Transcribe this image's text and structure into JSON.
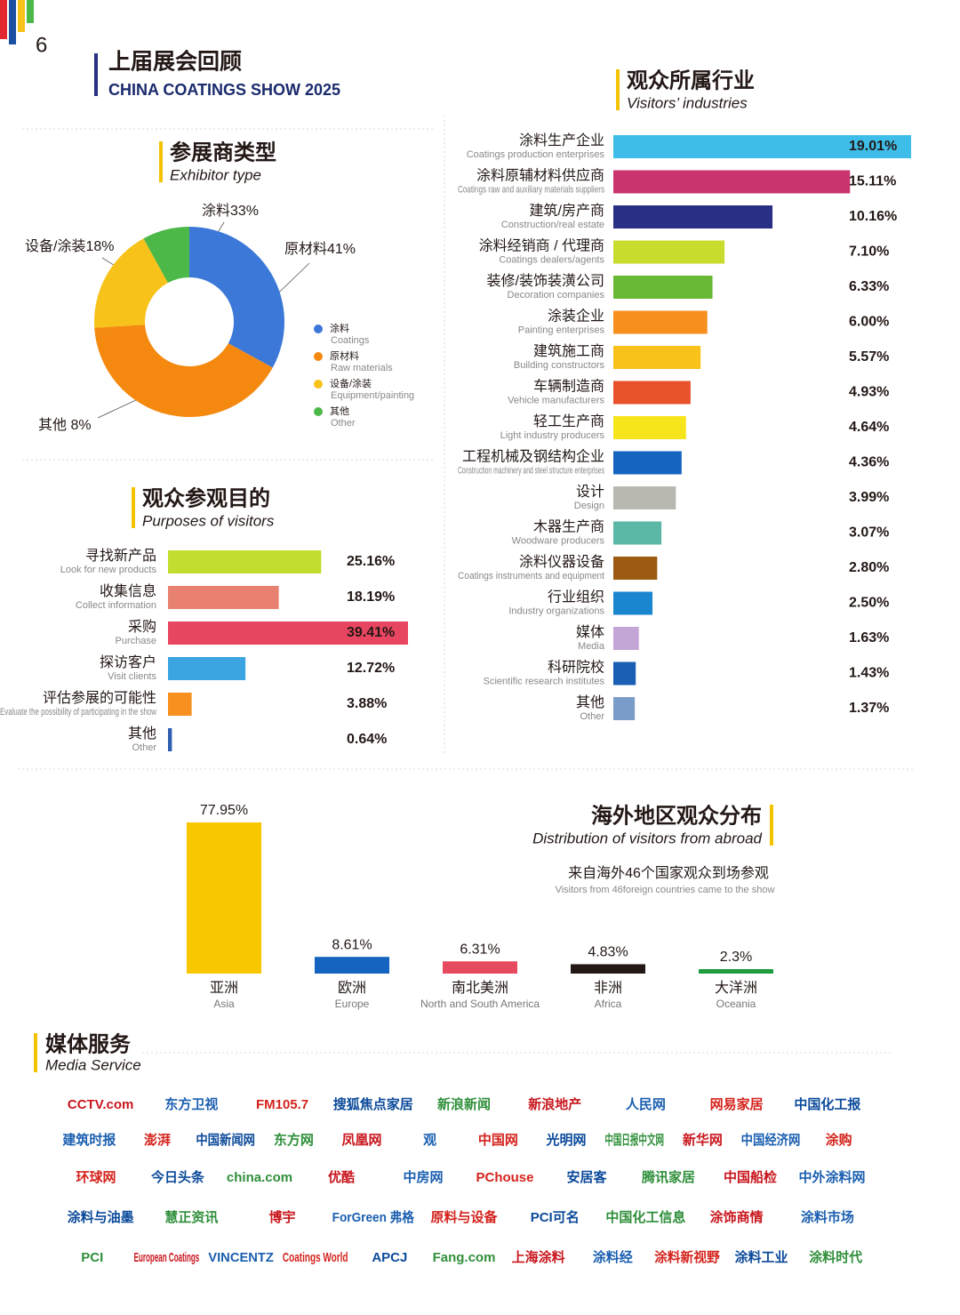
{
  "page_number": "6",
  "header": {
    "title": "上届展会回顾",
    "subtitle": "CHINA COATINGS SHOW 2025"
  },
  "chart_data": [
    {
      "type": "pie",
      "donut": true,
      "title": "参展商类型",
      "subtitle": "Exhibitor type",
      "categories": [
        "涂料",
        "原材料",
        "设备/涂装",
        "其他"
      ],
      "categories_en": [
        "Coatings",
        "Raw materials",
        "Equipment/painting",
        "Other"
      ],
      "values": [
        33,
        41,
        18,
        8
      ],
      "value_labels": [
        "涂料33%",
        "原材料41%",
        "设备/涂装18%",
        "其他 8%"
      ],
      "colors": [
        "#3b78d8",
        "#f5890f",
        "#f7c21a",
        "#4cb848"
      ]
    },
    {
      "type": "hbar",
      "title": "观众参观目的",
      "subtitle": "Purposes of visitors",
      "categories": [
        "寻找新产品",
        "收集信息",
        "采购",
        "探访客户",
        "评估参展的可能性",
        "其他"
      ],
      "categories_en": [
        "Look for new products",
        "Collect information",
        "Purchase",
        "Visit clients",
        "Evaluate the possibility of participating in the show",
        "Other"
      ],
      "values": [
        25.16,
        18.19,
        39.41,
        12.72,
        3.88,
        0.64
      ],
      "value_labels": [
        "25.16%",
        "18.19%",
        "39.41%",
        "12.72%",
        "3.88%",
        "0.64%"
      ],
      "colors": [
        "#c4dc2e",
        "#e8816f",
        "#e84660",
        "#3aa5e0",
        "#f7901e",
        "#2f5eb0"
      ]
    },
    {
      "type": "hbar",
      "title": "观众所属行业",
      "subtitle": "Visitors’ industries",
      "categories": [
        "涂料生产企业",
        "涂料原辅材料供应商",
        "建筑/房产商",
        "涂料经销商 / 代理商",
        "装修/装饰装潢公司",
        "涂装企业",
        "建筑施工商",
        "车辆制造商",
        "轻工生产商",
        "工程机械及钢结构企业",
        "设计",
        "木器生产商",
        "涂料仪器设备",
        "行业组织",
        "媒体",
        "科研院校",
        "其他"
      ],
      "categories_en": [
        "Coatings production enterprises",
        "Coatings raw and auxiliary materials suppliers",
        "Construction/real estate",
        "Coatings dealers/agents",
        "Decoration companies",
        "Painting enterprises",
        "Building constructors",
        "Vehicle manufacturers",
        "Light industry producers",
        "Construction machinery and steel structure enterprises",
        "Design",
        "Woodware producers",
        "Coatings instruments and equipment",
        "Industry organizations",
        "Media",
        "Scientific research institutes",
        "Other"
      ],
      "values": [
        19.01,
        15.11,
        10.16,
        7.1,
        6.33,
        6.0,
        5.57,
        4.93,
        4.64,
        4.36,
        3.99,
        3.07,
        2.8,
        2.5,
        1.63,
        1.43,
        1.37
      ],
      "value_labels": [
        "19.01%",
        "15.11%",
        "10.16%",
        "7.10%",
        "6.33%",
        "6.00%",
        "5.57%",
        "4.93%",
        "4.64%",
        "4.36%",
        "3.99%",
        "3.07%",
        "2.80%",
        "2.50%",
        "1.63%",
        "1.43%",
        "1.37%"
      ],
      "colors": [
        "#3dbde8",
        "#c9336e",
        "#2a2f86",
        "#c8dc2e",
        "#6ab936",
        "#f78f1e",
        "#f9c21a",
        "#e8512a",
        "#f7e51b",
        "#1565c0",
        "#b8b8b0",
        "#5bb8a6",
        "#9c5a12",
        "#1a86d0",
        "#c3a6d6",
        "#1a5fb4",
        "#7a9cc8"
      ]
    },
    {
      "type": "vbar",
      "title": "海外地区观众分布",
      "subtitle": "Distribution of visitors from abroad",
      "note": "来自海外46个国家观众到场参观",
      "note_en": "Visitors from 46foreign countries came to the show",
      "categories": [
        "亚洲",
        "欧洲",
        "南北美洲",
        "非洲",
        "大洋洲"
      ],
      "categories_en": [
        "Asia",
        "Europe",
        "North and South America",
        "Africa",
        "Oceania"
      ],
      "values": [
        77.95,
        8.61,
        6.31,
        4.83,
        2.3
      ],
      "value_labels": [
        "77.95%",
        "8.61%",
        "6.31%",
        "4.83%",
        "2.3%"
      ],
      "colors": [
        "#f9c700",
        "#1565c0",
        "#e64a5e",
        "#231815",
        "#1e9b3c"
      ]
    }
  ],
  "media": {
    "title": "媒体服务",
    "subtitle": "Media Service",
    "logos": [
      [
        "CCTV.com",
        "东方卫视",
        "FM105.7",
        "搜狐焦点家居",
        "新浪新闻",
        "新浪地产",
        "人民网",
        "网易家居",
        "中国化工报"
      ],
      [
        "建筑时报",
        "澎湃",
        "中国新闻网",
        "东方网",
        "凤凰网",
        "观",
        "中国网",
        "光明网",
        "中国日报中文网",
        "新华网",
        "中国经济网",
        "涂购"
      ],
      [
        "环球网",
        "今日头条",
        "china.com",
        "优酷",
        "中房网",
        "PChouse",
        "安居客",
        "腾讯家居",
        "中国船检",
        "中外涂料网"
      ],
      [
        "涂料与油墨",
        "慧正资讯",
        "博宇",
        "ForGreen 弗格",
        "原料与设备",
        "PCI可名",
        "中国化工信息",
        "涂饰商情",
        "涂料市场"
      ],
      [
        "PCI",
        "European Coatings",
        "VINCENTZ",
        "Coatings World",
        "APCJ",
        "Fang.com",
        "上海涂料",
        "涂料经",
        "涂料新视野",
        "涂料工业",
        "涂料时代"
      ]
    ]
  }
}
